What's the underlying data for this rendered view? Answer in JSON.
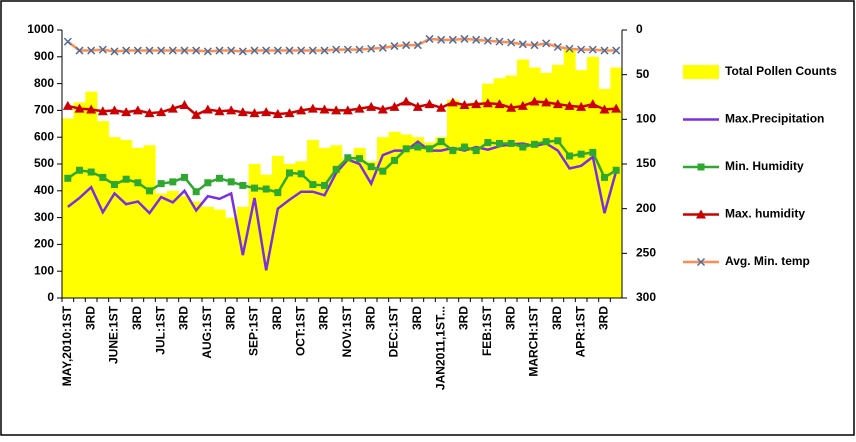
{
  "chart_data": {
    "type": "combo",
    "categories": [
      "MAY,2010:1ST",
      null,
      "3RD",
      null,
      "JUNE:1ST",
      null,
      "3RD",
      null,
      "JUL:1ST",
      null,
      "3RD",
      null,
      "AUG:1ST",
      null,
      "3RD",
      null,
      "SEP:1ST",
      null,
      "3RD",
      null,
      "OCT:1ST",
      null,
      "3RD",
      null,
      "NOV:1ST",
      null,
      "3RD",
      null,
      "DEC:1ST",
      null,
      "3RD",
      null,
      "JAN2011,1ST...",
      null,
      "3RD",
      null,
      "FEB:1ST",
      null,
      "3RD",
      null,
      "MARCH:1ST",
      null,
      "3RD",
      null,
      "APR:1ST",
      null,
      "3RD",
      null
    ],
    "series": [
      {
        "name": "Total Pollen Counts",
        "type": "bar",
        "color": "#ffff00",
        "values": [
          670,
          730,
          770,
          660,
          600,
          590,
          560,
          570,
          390,
          400,
          380,
          360,
          340,
          330,
          300,
          340,
          500,
          460,
          530,
          500,
          510,
          590,
          560,
          570,
          520,
          560,
          510,
          600,
          620,
          610,
          600,
          580,
          600,
          740,
          720,
          730,
          800,
          820,
          830,
          890,
          860,
          840,
          870,
          930,
          850,
          900,
          780,
          860
        ]
      },
      {
        "name": "Max.Precipitation",
        "type": "line",
        "axis": "y2",
        "color": "#7b2fe0",
        "marker": "none",
        "values": [
          198,
          188,
          176,
          204,
          183,
          195,
          192,
          205,
          187,
          193,
          180,
          202,
          186,
          189,
          183,
          252,
          188,
          269,
          200,
          190,
          181,
          181,
          185,
          160,
          145,
          150,
          172,
          140,
          135,
          135,
          125,
          135,
          135,
          132,
          135,
          131,
          134,
          130,
          128,
          127,
          130,
          127,
          135,
          155,
          152,
          142,
          205,
          158
        ]
      },
      {
        "name": "Min. Humidity",
        "type": "line",
        "axis": "y2",
        "color": "#2fa82f",
        "marker": "square",
        "values": [
          166,
          157,
          159,
          165,
          173,
          167,
          171,
          180,
          172,
          170,
          165,
          181,
          171,
          166,
          170,
          174,
          177,
          178,
          182,
          160,
          161,
          173,
          174,
          156,
          143,
          144,
          153,
          158,
          146,
          133,
          131,
          133,
          125,
          135,
          131,
          135,
          126,
          127,
          127,
          131,
          128,
          125,
          124,
          141,
          139,
          137,
          165,
          157
        ]
      },
      {
        "name": "Max. humidity",
        "type": "line",
        "axis": "y2",
        "color": "#cc0000",
        "marker": "triangle",
        "values": [
          85,
          88,
          89,
          91,
          90,
          92,
          90,
          93,
          92,
          88,
          84,
          95,
          89,
          91,
          90,
          92,
          93,
          92,
          94,
          93,
          90,
          88,
          89,
          90,
          90,
          88,
          86,
          89,
          86,
          80,
          86,
          83,
          87,
          81,
          84,
          83,
          82,
          83,
          87,
          85,
          80,
          81,
          83,
          85,
          86,
          83,
          89,
          88
        ]
      },
      {
        "name": "Avg. Min. temp",
        "type": "line",
        "axis": "y2",
        "color": "#ff8c50",
        "marker": "x",
        "marker_color": "#4f6d9a",
        "values": [
          13,
          23,
          23,
          22,
          24,
          23,
          23,
          23,
          23,
          23,
          23,
          23,
          24,
          23,
          23,
          24,
          23,
          23,
          23,
          23,
          23,
          23,
          23,
          22,
          22,
          22,
          21,
          20,
          18,
          17,
          17,
          10,
          11,
          11,
          10,
          11,
          12,
          13,
          14,
          16,
          17,
          15,
          19,
          21,
          22,
          22,
          23,
          23
        ]
      }
    ],
    "ylim": [
      0,
      1000
    ],
    "yticks": [
      0,
      100,
      200,
      300,
      400,
      500,
      600,
      700,
      800,
      900,
      1000
    ],
    "y2lim": [
      300,
      0
    ],
    "y2ticks": [
      0,
      50,
      100,
      150,
      200,
      250,
      300
    ],
    "legend": "right"
  }
}
